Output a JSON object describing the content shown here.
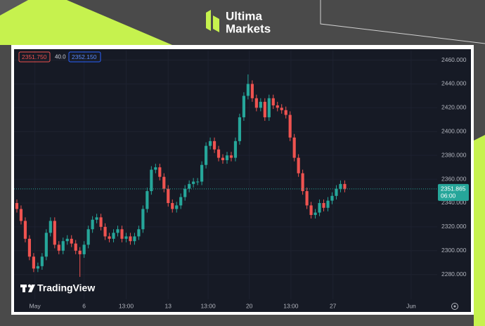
{
  "brand": {
    "line1": "Ultima",
    "line2": "Markets"
  },
  "watermark": "TradingView",
  "chart_data": {
    "type": "candlestick",
    "colors": {
      "up": "#26a69a",
      "down": "#ef5350"
    },
    "quote": {
      "bid": "2351.750",
      "spread": "40.0",
      "ask": "2352.150"
    },
    "last_price": 2351.865,
    "last_price_time": "06:00",
    "xlim": [
      -1,
      100
    ],
    "xticks": [
      {
        "value": 4.3,
        "label": "May"
      },
      {
        "value": 16,
        "label": "6"
      },
      {
        "value": 26,
        "label": "13:00"
      },
      {
        "value": 36,
        "label": "13"
      },
      {
        "value": 45.5,
        "label": "13:00"
      },
      {
        "value": 55.3,
        "label": "20"
      },
      {
        "value": 65.2,
        "label": "13:00"
      },
      {
        "value": 75.2,
        "label": "27"
      },
      {
        "value": 93.8,
        "label": "Jun"
      }
    ],
    "ylim": [
      2258,
      2468
    ],
    "yticks": [
      {
        "value": 2280,
        "label": "2280.000"
      },
      {
        "value": 2300,
        "label": "2300.000"
      },
      {
        "value": 2320,
        "label": "2320.000"
      },
      {
        "value": 2340,
        "label": "2340.000"
      },
      {
        "value": 2360,
        "label": "2360.000"
      },
      {
        "value": 2380,
        "label": "2380.000"
      },
      {
        "value": 2400,
        "label": "2400.000"
      },
      {
        "value": 2420,
        "label": "2420.000"
      },
      {
        "value": 2440,
        "label": "2440.000"
      },
      {
        "value": 2460,
        "label": "2460.000"
      }
    ],
    "open": [
      2340,
      2335,
      2325,
      2310,
      2295,
      2285,
      2287,
      2295,
      2315,
      2325,
      2305,
      2300,
      2308,
      2310,
      2306,
      2300,
      2297,
      2305,
      2318,
      2326,
      2328,
      2320,
      2312,
      2310,
      2315,
      2318,
      2310,
      2312,
      2308,
      2312,
      2318,
      2335,
      2350,
      2368,
      2370,
      2362,
      2352,
      2340,
      2335,
      2338,
      2345,
      2352,
      2356,
      2358,
      2358,
      2372,
      2388,
      2392,
      2385,
      2378,
      2376,
      2380,
      2378,
      2392,
      2412,
      2430,
      2440,
      2428,
      2420,
      2425,
      2412,
      2428,
      2422,
      2420,
      2418,
      2414,
      2395,
      2378,
      2365,
      2350,
      2338,
      2330,
      2332,
      2340,
      2336,
      2342,
      2346,
      2352,
      2356
    ],
    "high": [
      2343,
      2338,
      2328,
      2313,
      2298,
      2290,
      2298,
      2318,
      2328,
      2328,
      2308,
      2311,
      2313,
      2313,
      2309,
      2303,
      2308,
      2321,
      2329,
      2331,
      2331,
      2323,
      2315,
      2318,
      2321,
      2321,
      2315,
      2315,
      2315,
      2321,
      2338,
      2353,
      2371,
      2373,
      2373,
      2365,
      2355,
      2343,
      2341,
      2348,
      2355,
      2359,
      2361,
      2361,
      2375,
      2391,
      2395,
      2395,
      2388,
      2381,
      2383,
      2383,
      2395,
      2415,
      2433,
      2448,
      2443,
      2431,
      2428,
      2428,
      2431,
      2431,
      2425,
      2423,
      2421,
      2417,
      2398,
      2381,
      2368,
      2353,
      2341,
      2335,
      2343,
      2343,
      2345,
      2349,
      2355,
      2359,
      2359
    ],
    "low": [
      2332,
      2322,
      2307,
      2292,
      2282,
      2282,
      2284,
      2292,
      2312,
      2302,
      2297,
      2297,
      2305,
      2303,
      2297,
      2278,
      2294,
      2302,
      2315,
      2323,
      2317,
      2309,
      2307,
      2307,
      2312,
      2307,
      2307,
      2305,
      2305,
      2309,
      2315,
      2332,
      2347,
      2365,
      2359,
      2349,
      2337,
      2332,
      2332,
      2335,
      2342,
      2349,
      2353,
      2355,
      2355,
      2369,
      2385,
      2382,
      2375,
      2373,
      2373,
      2375,
      2375,
      2389,
      2409,
      2427,
      2425,
      2417,
      2417,
      2409,
      2409,
      2419,
      2417,
      2415,
      2411,
      2392,
      2375,
      2362,
      2347,
      2335,
      2327,
      2327,
      2329,
      2333,
      2333,
      2339,
      2343,
      2349,
      2349
    ],
    "close": [
      2335,
      2325,
      2310,
      2295,
      2285,
      2287,
      2295,
      2315,
      2325,
      2305,
      2300,
      2308,
      2310,
      2306,
      2300,
      2297,
      2305,
      2318,
      2326,
      2328,
      2320,
      2312,
      2310,
      2315,
      2318,
      2310,
      2312,
      2308,
      2312,
      2318,
      2335,
      2350,
      2368,
      2370,
      2362,
      2352,
      2340,
      2335,
      2338,
      2345,
      2352,
      2356,
      2358,
      2358,
      2372,
      2388,
      2392,
      2385,
      2378,
      2376,
      2380,
      2378,
      2392,
      2412,
      2430,
      2440,
      2428,
      2420,
      2425,
      2412,
      2428,
      2422,
      2420,
      2418,
      2414,
      2395,
      2378,
      2365,
      2350,
      2338,
      2330,
      2332,
      2340,
      2336,
      2342,
      2346,
      2352,
      2356,
      2352
    ]
  }
}
